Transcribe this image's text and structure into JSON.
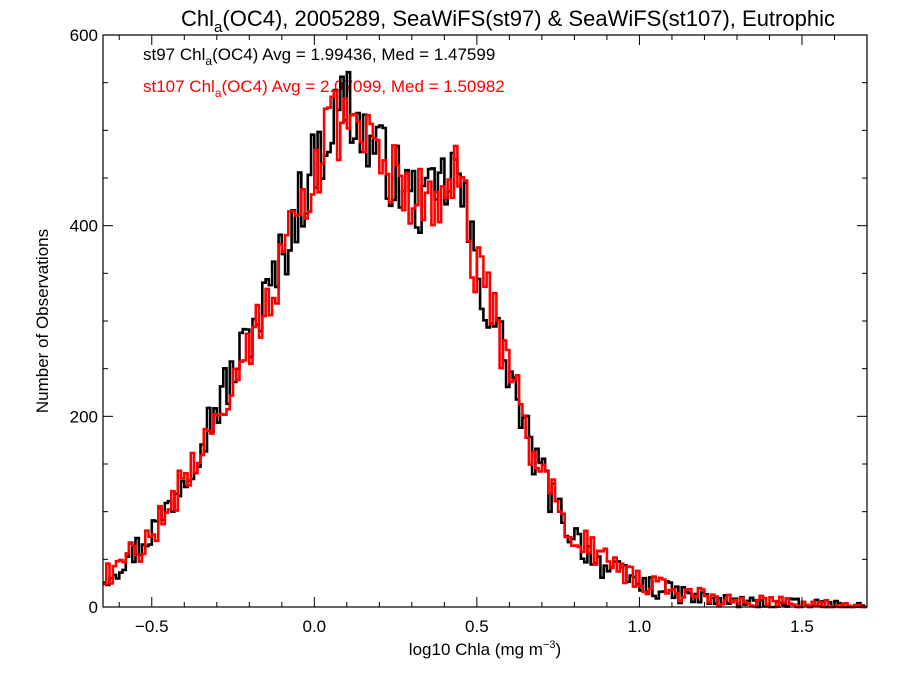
{
  "chart_data": {
    "type": "step-histogram",
    "title": {
      "prefix": "Chl",
      "subscript": "a",
      "rest": "(OC4), 2005289, SeaWiFS(st97) & SeaWiFS(st107), Eutrophic"
    },
    "xlabel": {
      "prefix": "log10 Chla (mg m",
      "superscript": "−3",
      "suffix": ")"
    },
    "ylabel": "Number of Observations",
    "xlim": [
      -0.65,
      1.7
    ],
    "ylim": [
      0,
      600
    ],
    "xticks": [
      -0.5,
      0.0,
      0.5,
      1.0,
      1.5
    ],
    "xtick_labels": [
      "−0.5",
      "0.0",
      "0.5",
      "1.0",
      "1.5"
    ],
    "yticks": [
      0,
      200,
      400,
      600
    ],
    "ytick_labels": [
      "0",
      "200",
      "400",
      "600"
    ],
    "grid": false,
    "legend_position": "top-left",
    "annotations": [
      {
        "color": "#000000",
        "prefix": "st97 Chl",
        "subscript": "a",
        "rest": "(OC4) Avg = 1.99436, Med = 1.47599"
      },
      {
        "color": "#ff0000",
        "prefix": "st107 Chl",
        "subscript": "a",
        "rest": "(OC4) Avg = 2.07099, Med = 1.50982"
      }
    ],
    "bin_width": 0.01,
    "series": [
      {
        "color": "#000000",
        "x": [
          -0.65,
          -0.6,
          -0.55,
          -0.5,
          -0.45,
          -0.4,
          -0.35,
          -0.3,
          -0.25,
          -0.2,
          -0.15,
          -0.1,
          -0.05,
          0.0,
          0.05,
          0.08,
          0.1,
          0.12,
          0.15,
          0.2,
          0.25,
          0.3,
          0.35,
          0.4,
          0.43,
          0.45,
          0.5,
          0.55,
          0.6,
          0.65,
          0.7,
          0.75,
          0.8,
          0.85,
          0.9,
          1.0,
          1.1,
          1.2,
          1.3,
          1.4,
          1.5,
          1.6,
          1.7
        ],
        "values": [
          30,
          45,
          60,
          80,
          105,
          140,
          175,
          210,
          245,
          285,
          320,
          365,
          420,
          465,
          505,
          525,
          540,
          515,
          495,
          475,
          450,
          430,
          420,
          445,
          460,
          440,
          350,
          300,
          250,
          180,
          140,
          100,
          75,
          55,
          40,
          25,
          15,
          8,
          5,
          3,
          2,
          1,
          0
        ]
      },
      {
        "color": "#ff0000",
        "x": [
          -0.65,
          -0.6,
          -0.55,
          -0.5,
          -0.45,
          -0.4,
          -0.35,
          -0.3,
          -0.25,
          -0.2,
          -0.15,
          -0.1,
          -0.05,
          0.0,
          0.05,
          0.08,
          0.1,
          0.12,
          0.15,
          0.2,
          0.25,
          0.3,
          0.35,
          0.4,
          0.43,
          0.45,
          0.5,
          0.55,
          0.6,
          0.65,
          0.7,
          0.75,
          0.8,
          0.85,
          0.9,
          1.0,
          1.1,
          1.2,
          1.3,
          1.4,
          1.5,
          1.6,
          1.7
        ],
        "values": [
          28,
          44,
          58,
          78,
          100,
          135,
          170,
          205,
          240,
          278,
          315,
          360,
          415,
          460,
          495,
          510,
          505,
          495,
          485,
          470,
          450,
          430,
          425,
          440,
          455,
          440,
          355,
          305,
          255,
          185,
          145,
          105,
          80,
          60,
          45,
          28,
          18,
          10,
          6,
          4,
          3,
          1,
          0
        ]
      }
    ]
  }
}
